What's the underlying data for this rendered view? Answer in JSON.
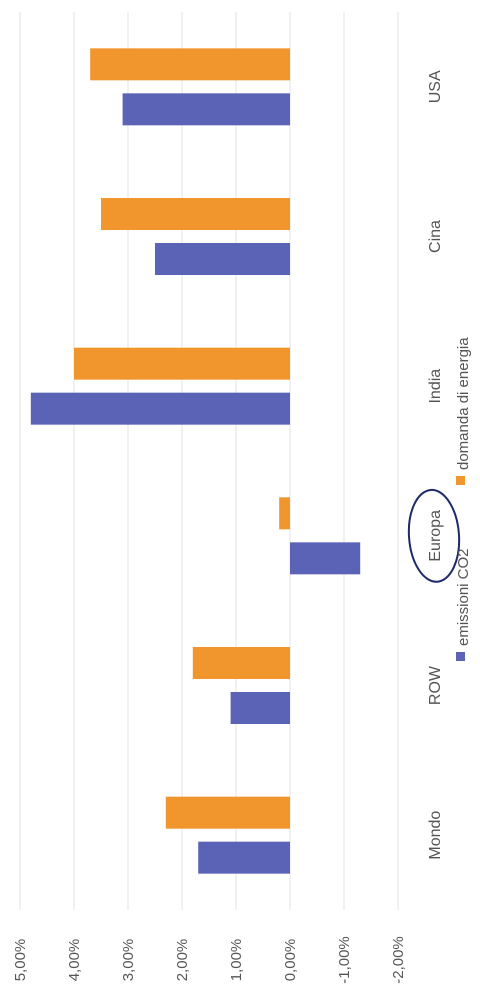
{
  "chart_data": {
    "type": "bar",
    "orientation": "horizontal-rotated",
    "categories": [
      "USA",
      "Cina",
      "India",
      "Europa",
      "ROW",
      "Mondo"
    ],
    "series": [
      {
        "name": "emissioni CO2",
        "values": [
          3.1,
          2.5,
          4.8,
          -1.3,
          1.1,
          1.7
        ],
        "color": "#5b63b7"
      },
      {
        "name": "domanda di energia",
        "values": [
          3.7,
          3.5,
          4.0,
          0.2,
          1.8,
          2.3
        ],
        "color": "#f0962c"
      }
    ],
    "value_axis": {
      "min": -2,
      "max": 5,
      "step": 1,
      "tick_labels": [
        "-2,00%",
        "-1,00%",
        "0,00%",
        "1,00%",
        "2,00%",
        "3,00%",
        "4,00%",
        "5,00%"
      ]
    },
    "highlighted_category": "Europa",
    "highlight_color": "#1f2a6b",
    "grid": true,
    "legend_position": "bottom"
  }
}
